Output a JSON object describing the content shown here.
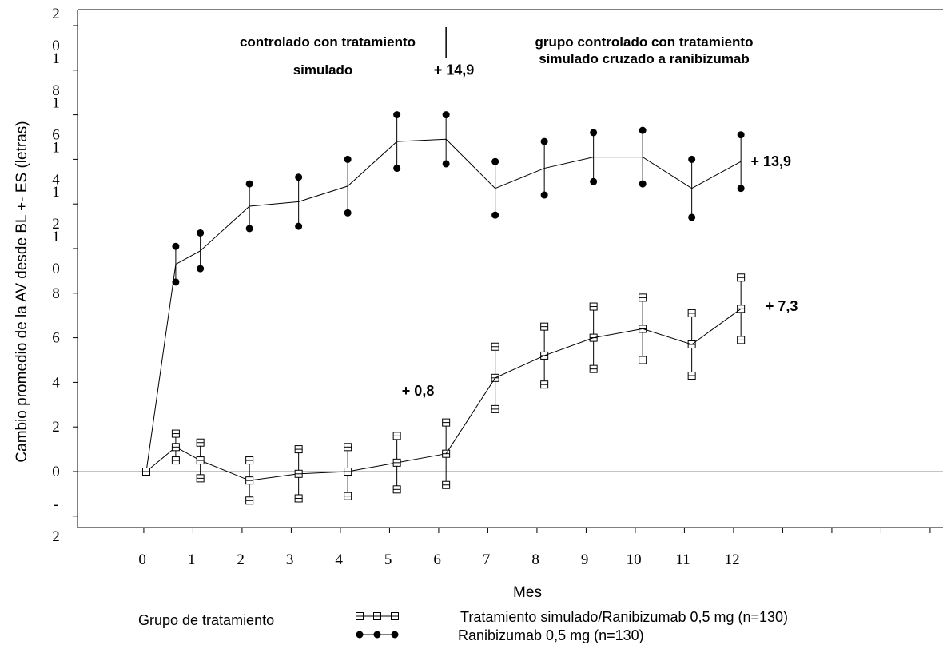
{
  "chart_data": {
    "type": "line",
    "xlabel": "Mes",
    "ylabel": "Cambio promedio de la AV desde BL +- ES (letras)",
    "x_ticks": [
      "0",
      "1",
      "2",
      "3",
      "4",
      "5",
      "6",
      "7",
      "8",
      "9",
      "10",
      "11",
      "12"
    ],
    "y_ticks": [
      {
        "value": -2,
        "lines": [
          "-",
          "2"
        ]
      },
      {
        "value": 0,
        "lines": [
          "0"
        ]
      },
      {
        "value": 2,
        "lines": [
          "2"
        ]
      },
      {
        "value": 4,
        "lines": [
          "4"
        ]
      },
      {
        "value": 6,
        "lines": [
          "6"
        ]
      },
      {
        "value": 8,
        "lines": [
          "8"
        ]
      },
      {
        "value": 10,
        "lines": [
          "1",
          "0"
        ]
      },
      {
        "value": 12,
        "lines": [
          "1",
          "2"
        ]
      },
      {
        "value": 14,
        "lines": [
          "1",
          "4"
        ]
      },
      {
        "value": 16,
        "lines": [
          "1",
          "6"
        ]
      },
      {
        "value": 18,
        "lines": [
          "1",
          "8"
        ]
      },
      {
        "value": 20,
        "lines": [
          "2",
          "0"
        ]
      }
    ],
    "ylim": [
      -2.5,
      21
    ],
    "xlim": [
      -1.4,
      17
    ],
    "reference_line_y": 0,
    "phase_labels": {
      "left": [
        "controlado con tratamiento",
        "simulado"
      ],
      "right": [
        "grupo controlado con tratamiento",
        "simulado cruzado a ranibizumab"
      ]
    },
    "phase_divider_x": 6.1,
    "series": [
      {
        "name": "Ranibizumab 0,5 mg (n=130)",
        "marker": "filled-circle",
        "color": "#000000",
        "x": [
          0,
          0.6,
          1.1,
          2.1,
          3.1,
          4.1,
          5.1,
          6.1,
          7.1,
          8.1,
          9.1,
          10.1,
          11.1,
          12.1
        ],
        "y": [
          0,
          9.3,
          9.9,
          11.9,
          12.1,
          12.8,
          14.8,
          14.9,
          12.7,
          13.6,
          14.1,
          14.1,
          12.7,
          13.9
        ],
        "err": [
          0,
          0.8,
          0.8,
          1.0,
          1.1,
          1.2,
          1.2,
          1.1,
          1.2,
          1.2,
          1.1,
          1.2,
          1.3,
          1.2
        ]
      },
      {
        "name": "Tratamiento simulado/Ranibizumab 0,5 mg (n=130)",
        "marker": "hollow-square",
        "color": "#000000",
        "x": [
          0,
          0.6,
          1.1,
          2.1,
          3.1,
          4.1,
          5.1,
          6.1,
          7.1,
          8.1,
          9.1,
          10.1,
          11.1,
          12.1
        ],
        "y": [
          0,
          1.1,
          0.5,
          -0.4,
          -0.1,
          0.0,
          0.4,
          0.8,
          4.2,
          5.2,
          6.0,
          6.4,
          5.7,
          7.3
        ],
        "err": [
          0,
          0.6,
          0.8,
          0.9,
          1.1,
          1.1,
          1.2,
          1.4,
          1.4,
          1.3,
          1.4,
          1.4,
          1.4,
          1.4
        ]
      }
    ],
    "annotations": [
      {
        "text": "+ 14,9",
        "x": 5.85,
        "y": 17.8
      },
      {
        "text": "+ 13,9",
        "x": 12.3,
        "y": 13.7
      },
      {
        "text": "+ 7,3",
        "x": 12.6,
        "y": 7.2
      },
      {
        "text": "+ 0,8",
        "x": 5.2,
        "y": 3.4
      }
    ],
    "legend": {
      "title": "Grupo de tratamiento",
      "placement": "bottom"
    }
  }
}
